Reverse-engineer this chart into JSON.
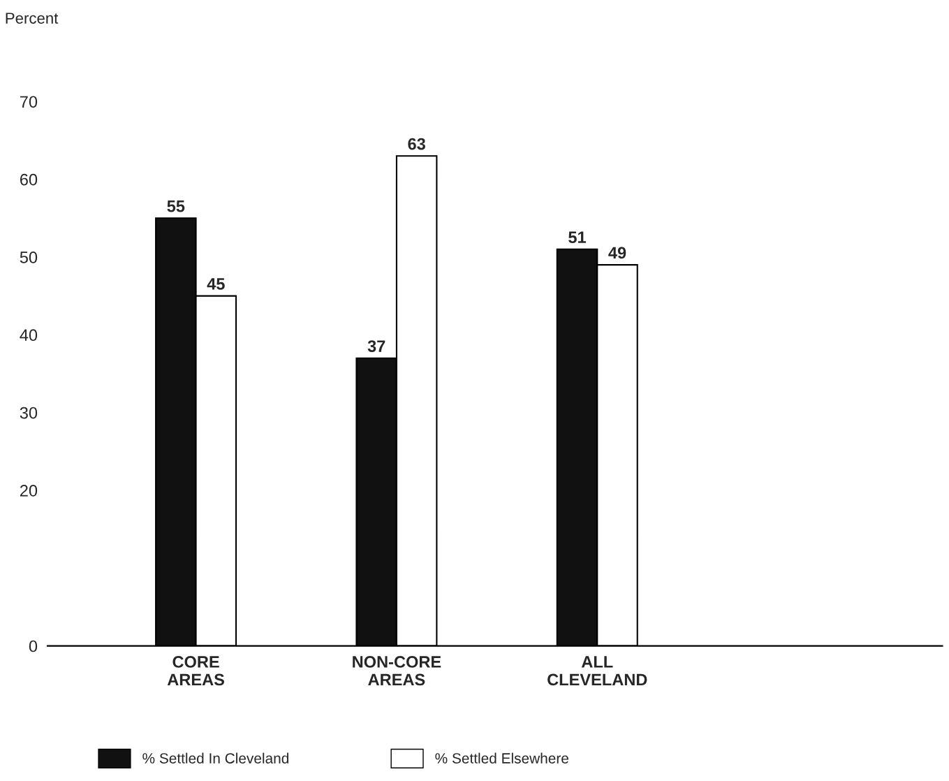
{
  "chart_data": {
    "type": "bar",
    "ylabel": "Percent",
    "categories": [
      "CORE\nAREAS",
      "NON-CORE\nAREAS",
      "ALL\nCLEVELAND"
    ],
    "series": [
      {
        "name": "% Settled In Cleveland",
        "color": "#111111",
        "values": [
          55,
          37,
          51
        ]
      },
      {
        "name": "% Settled Elsewhere",
        "color": "#ffffff",
        "values": [
          45,
          63,
          49
        ]
      }
    ],
    "ylim": [
      0,
      70
    ],
    "yticks": [
      0,
      20,
      30,
      40,
      50,
      60,
      70
    ],
    "data_labels": true,
    "grid": false,
    "legend": "bottom"
  }
}
